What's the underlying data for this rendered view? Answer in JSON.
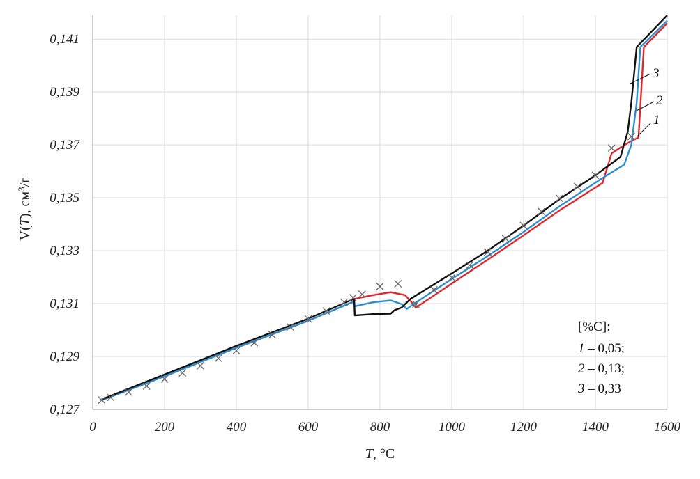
{
  "chart_data": {
    "type": "line",
    "xlabel": {
      "var": "T",
      "unit": ", °C"
    },
    "ylabel": {
      "var_open": "V(",
      "var": "T",
      "var_close": ")",
      "unit": ", см",
      "unit_sup": "3",
      "unit_end": "/г"
    },
    "xlim": [
      0,
      1600
    ],
    "ylim": [
      0.127,
      0.1419
    ],
    "x_ticks": [
      0,
      200,
      400,
      600,
      800,
      1000,
      1200,
      1400,
      1600
    ],
    "x_tick_labels": [
      "0",
      "200",
      "400",
      "600",
      "800",
      "1000",
      "1200",
      "1400",
      "1600"
    ],
    "y_ticks": [
      0.127,
      0.129,
      0.131,
      0.133,
      0.135,
      0.137,
      0.139,
      0.141
    ],
    "y_tick_labels": [
      "0,127",
      "0,129",
      "0,131",
      "0,133",
      "0,135",
      "0,137",
      "0,139",
      "0,141"
    ],
    "grid": true,
    "legend": {
      "title": "[%C]:",
      "entries": [
        {
          "num": "1",
          "text": " – 0,05;"
        },
        {
          "num": "2",
          "text": " – 0,13;"
        },
        {
          "num": "3",
          "text": " – 0,33"
        }
      ],
      "position": "lower-right"
    },
    "series": [
      {
        "name": "1",
        "color": "#e0282e",
        "points": [
          [
            25,
            0.12735
          ],
          [
            200,
            0.12825
          ],
          [
            400,
            0.12933
          ],
          [
            600,
            0.13035
          ],
          [
            728,
            0.13108
          ],
          [
            730,
            0.13118
          ],
          [
            780,
            0.13132
          ],
          [
            830,
            0.13143
          ],
          [
            870,
            0.13132
          ],
          [
            885,
            0.1311
          ],
          [
            900,
            0.13085
          ],
          [
            1000,
            0.13176
          ],
          [
            1100,
            0.13266
          ],
          [
            1200,
            0.13358
          ],
          [
            1300,
            0.13452
          ],
          [
            1420,
            0.13556
          ],
          [
            1445,
            0.13668
          ],
          [
            1470,
            0.1369
          ],
          [
            1500,
            0.13715
          ],
          [
            1520,
            0.13728
          ],
          [
            1535,
            0.1407
          ],
          [
            1600,
            0.1416
          ]
        ]
      },
      {
        "name": "2",
        "color": "#2b8fce",
        "points": [
          [
            25,
            0.12735
          ],
          [
            200,
            0.12825
          ],
          [
            400,
            0.12933
          ],
          [
            600,
            0.13035
          ],
          [
            728,
            0.13108
          ],
          [
            730,
            0.1309
          ],
          [
            780,
            0.13105
          ],
          [
            830,
            0.13112
          ],
          [
            860,
            0.13098
          ],
          [
            875,
            0.1308
          ],
          [
            895,
            0.131
          ],
          [
            1000,
            0.13193
          ],
          [
            1100,
            0.1328
          ],
          [
            1200,
            0.13371
          ],
          [
            1300,
            0.13468
          ],
          [
            1420,
            0.13575
          ],
          [
            1480,
            0.13625
          ],
          [
            1500,
            0.137
          ],
          [
            1515,
            0.1386
          ],
          [
            1525,
            0.1407
          ],
          [
            1600,
            0.1417
          ]
        ]
      },
      {
        "name": "3",
        "color": "#111111",
        "points": [
          [
            25,
            0.12738
          ],
          [
            200,
            0.12832
          ],
          [
            400,
            0.1294
          ],
          [
            600,
            0.13043
          ],
          [
            728,
            0.13118
          ],
          [
            730,
            0.13055
          ],
          [
            780,
            0.1306
          ],
          [
            830,
            0.13062
          ],
          [
            840,
            0.13075
          ],
          [
            860,
            0.13085
          ],
          [
            885,
            0.13118
          ],
          [
            1000,
            0.13214
          ],
          [
            1100,
            0.133
          ],
          [
            1200,
            0.13395
          ],
          [
            1300,
            0.13495
          ],
          [
            1400,
            0.13585
          ],
          [
            1470,
            0.13655
          ],
          [
            1490,
            0.1375
          ],
          [
            1500,
            0.1386
          ],
          [
            1515,
            0.1407
          ],
          [
            1600,
            0.1419
          ]
        ]
      },
      {
        "name": "",
        "color": "#666666",
        "marker": "x",
        "points": [
          [
            25,
            0.12735
          ],
          [
            50,
            0.12745
          ],
          [
            100,
            0.12765
          ],
          [
            150,
            0.12788
          ],
          [
            200,
            0.12815
          ],
          [
            250,
            0.12838
          ],
          [
            300,
            0.12865
          ],
          [
            350,
            0.12893
          ],
          [
            400,
            0.12922
          ],
          [
            450,
            0.12952
          ],
          [
            500,
            0.12982
          ],
          [
            550,
            0.13012
          ],
          [
            600,
            0.13042
          ],
          [
            650,
            0.13072
          ],
          [
            700,
            0.13105
          ],
          [
            725,
            0.13122
          ],
          [
            750,
            0.13135
          ],
          [
            800,
            0.13165
          ],
          [
            850,
            0.13175
          ],
          [
            900,
            0.13098
          ],
          [
            950,
            0.13152
          ],
          [
            1000,
            0.13198
          ],
          [
            1050,
            0.13245
          ],
          [
            1100,
            0.13295
          ],
          [
            1150,
            0.13345
          ],
          [
            1200,
            0.13395
          ],
          [
            1250,
            0.13448
          ],
          [
            1300,
            0.13498
          ],
          [
            1350,
            0.13542
          ],
          [
            1400,
            0.13585
          ],
          [
            1445,
            0.13688
          ],
          [
            1500,
            0.13732
          ]
        ]
      }
    ]
  }
}
